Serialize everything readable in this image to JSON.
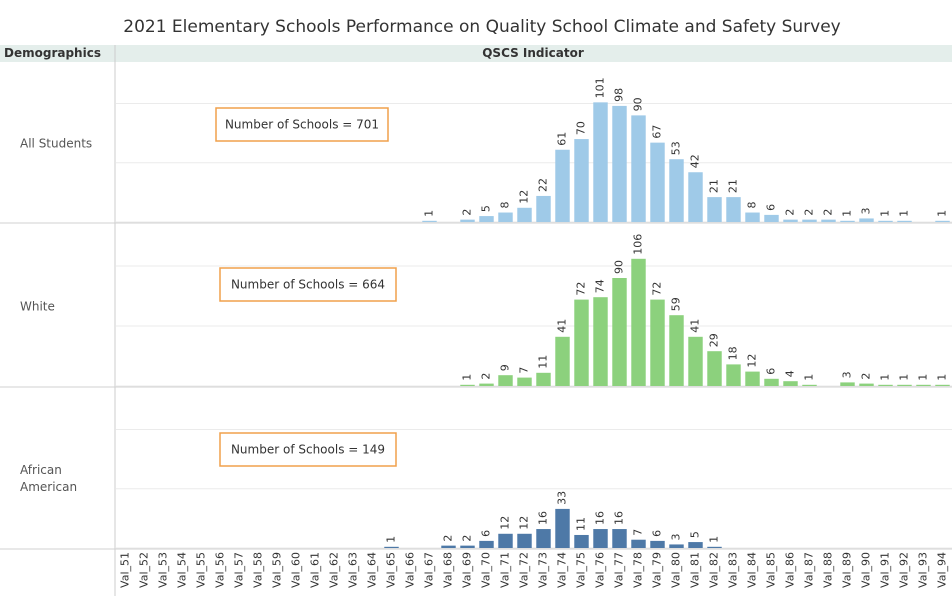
{
  "title": "2021 Elementary Schools Performance on Quality School Climate and Safety Survey",
  "header": {
    "left": "Demographics",
    "right": "QSCS Indicator"
  },
  "chart_data": [
    {
      "type": "bar",
      "label": "All Students",
      "annotation": "Number of Schools = 701",
      "color": "#9fcae8",
      "values": [
        null,
        null,
        null,
        null,
        null,
        null,
        null,
        null,
        null,
        null,
        null,
        null,
        null,
        null,
        null,
        null,
        1,
        null,
        2,
        5,
        8,
        12,
        22,
        61,
        70,
        101,
        98,
        90,
        67,
        53,
        42,
        21,
        21,
        8,
        6,
        2,
        2,
        2,
        1,
        3,
        1,
        1,
        null,
        1
      ],
      "ylim": [
        0,
        130
      ],
      "yticks": [
        0,
        50,
        100
      ],
      "grid": true
    },
    {
      "type": "bar",
      "label": "White",
      "annotation": "Number of Schools = 664",
      "color": "#8cd17d",
      "values": [
        null,
        null,
        null,
        null,
        null,
        null,
        null,
        null,
        null,
        null,
        null,
        null,
        null,
        null,
        null,
        null,
        null,
        null,
        1,
        2,
        9,
        7,
        11,
        41,
        72,
        74,
        90,
        106,
        72,
        59,
        41,
        29,
        18,
        12,
        6,
        4,
        1,
        null,
        3,
        2,
        1,
        1,
        1,
        1
      ],
      "ylim": [
        0,
        130
      ],
      "yticks": [
        0,
        50,
        100
      ],
      "grid": true
    },
    {
      "type": "bar",
      "label": "African American",
      "annotation": "Number of Schools = 149",
      "color": "#4e79a7",
      "categories": [
        "Val_51",
        "Val_52",
        "Val_53",
        "Val_54",
        "Val_55",
        "Val_56",
        "Val_57",
        "Val_58",
        "Val_59",
        "Val_60",
        "Val_61",
        "Val_62",
        "Val_63",
        "Val_64",
        "Val_65",
        "Val_66",
        "Val_67",
        "Val_68",
        "Val_69",
        "Val_70",
        "Val_71",
        "Val_72",
        "Val_73",
        "Val_74",
        "Val_75",
        "Val_76",
        "Val_77",
        "Val_78",
        "Val_79",
        "Val_80",
        "Val_81",
        "Val_82",
        "Val_83",
        "Val_84",
        "Val_85",
        "Val_86",
        "Val_87",
        "Val_88",
        "Val_89",
        "Val_90",
        "Val_91",
        "Val_92",
        "Val_93",
        "Val_94"
      ],
      "values": [
        null,
        null,
        null,
        null,
        null,
        null,
        null,
        null,
        null,
        null,
        null,
        null,
        null,
        null,
        1,
        null,
        null,
        2,
        2,
        6,
        12,
        12,
        16,
        33,
        11,
        16,
        16,
        7,
        6,
        3,
        5,
        1,
        null,
        null,
        null,
        null,
        null,
        null,
        null,
        null,
        null,
        null,
        null,
        null
      ],
      "ylim": [
        0,
        130
      ],
      "yticks": [
        0,
        50,
        100
      ],
      "grid": true
    }
  ]
}
